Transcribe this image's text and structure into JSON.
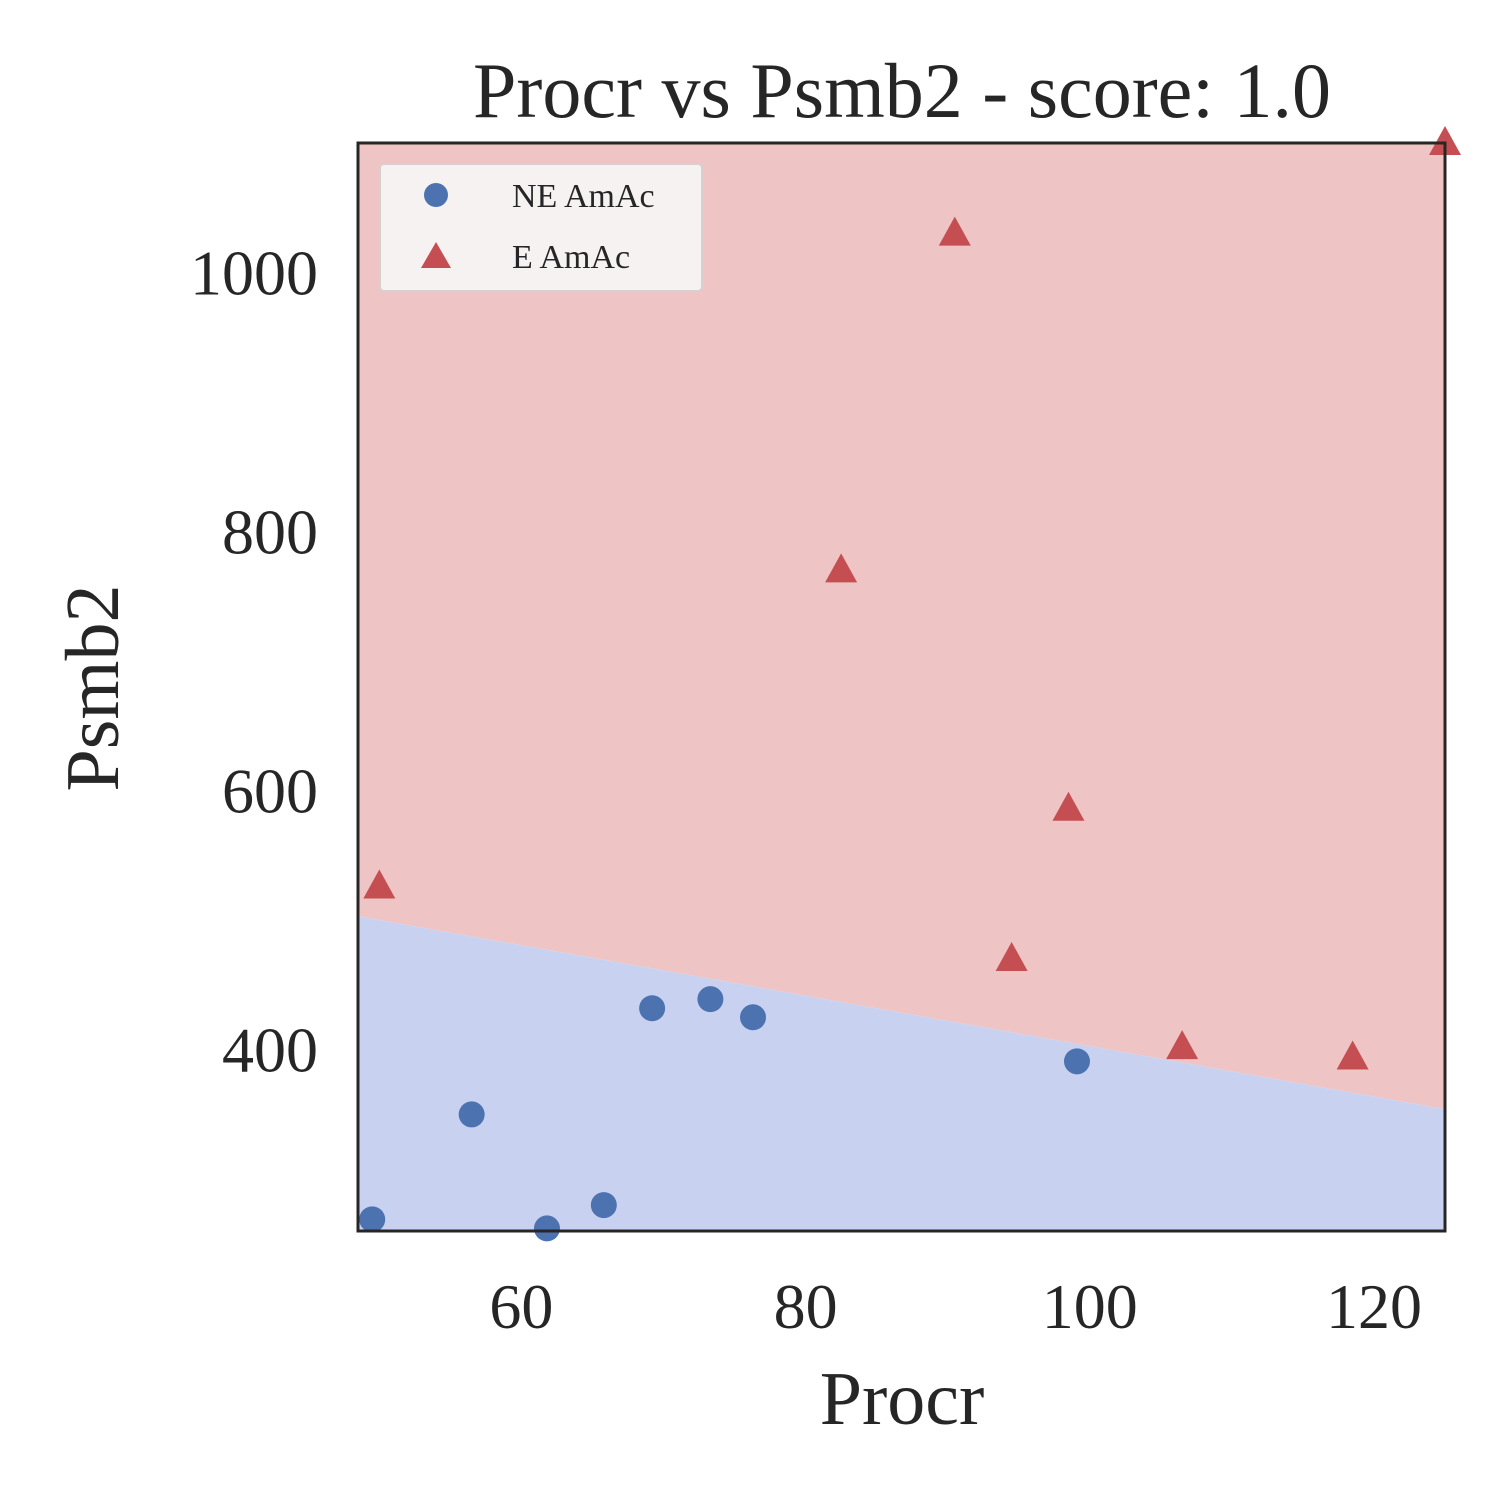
{
  "chart_data": {
    "type": "scatter",
    "title": "Procr vs Psmb2 - score: 1.0",
    "xlabel": "Procr",
    "ylabel": "Psmb2",
    "xlim": [
      48.5,
      125
    ],
    "ylim": [
      260,
      1100
    ],
    "xticks": [
      60,
      80,
      100,
      120
    ],
    "yticks": [
      400,
      600,
      800,
      1000
    ],
    "grid": false,
    "legend_position": "top-left",
    "decision_boundary": {
      "x": [
        48.5,
        125
      ],
      "y": [
        503,
        354
      ],
      "below_label": "NE AmAc",
      "above_label": "E AmAc",
      "below_color": "#c9d1f1",
      "above_color": "#eec5c4"
    },
    "series": [
      {
        "name": "NE AmAc",
        "marker": "circle",
        "color": "#4c72b0",
        "points": [
          [
            49.5,
            269
          ],
          [
            56.5,
            350
          ],
          [
            61.8,
            262
          ],
          [
            65.8,
            280
          ],
          [
            69.2,
            432
          ],
          [
            73.3,
            439
          ],
          [
            76.3,
            425
          ],
          [
            99.1,
            391
          ]
        ]
      },
      {
        "name": "E AmAc",
        "marker": "triangle",
        "color": "#c44e52",
        "points": [
          [
            50.0,
            526
          ],
          [
            82.5,
            770
          ],
          [
            90.5,
            1030
          ],
          [
            94.5,
            470
          ],
          [
            98.5,
            586
          ],
          [
            106.5,
            402
          ],
          [
            118.5,
            394
          ],
          [
            125.0,
            1100
          ]
        ]
      }
    ]
  }
}
